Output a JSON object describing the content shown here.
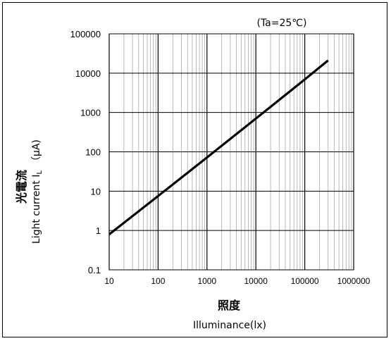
{
  "chart_data": {
    "type": "line",
    "annotation": "(Ta=25℃)",
    "xlabel_jp": "照度",
    "xlabel_en": "Illuminance(lx)",
    "ylabel_jp": "光電流",
    "ylabel_en_main": "Light current I",
    "ylabel_en_sub": "L",
    "ylabel_en_unit": "（μA)",
    "x_scale": "log",
    "y_scale": "log",
    "xlim": [
      10,
      1000000
    ],
    "ylim": [
      0.1,
      100000
    ],
    "x_ticks": [
      10,
      100,
      1000,
      10000,
      100000,
      1000000
    ],
    "x_tick_labels": [
      "10",
      "100",
      "1000",
      "10000",
      "100000",
      "1000000"
    ],
    "y_ticks": [
      0.1,
      1,
      10,
      100,
      1000,
      10000,
      100000
    ],
    "y_tick_labels": [
      "0.1",
      "1",
      "10",
      "100",
      "1000",
      "10000",
      "100000"
    ],
    "grid": true,
    "series": [
      {
        "x": [
          10,
          100,
          1000,
          10000,
          100000,
          300000
        ],
        "y": [
          0.8,
          7.5,
          72,
          700,
          6900,
          21000
        ],
        "color": "#000000"
      }
    ]
  }
}
